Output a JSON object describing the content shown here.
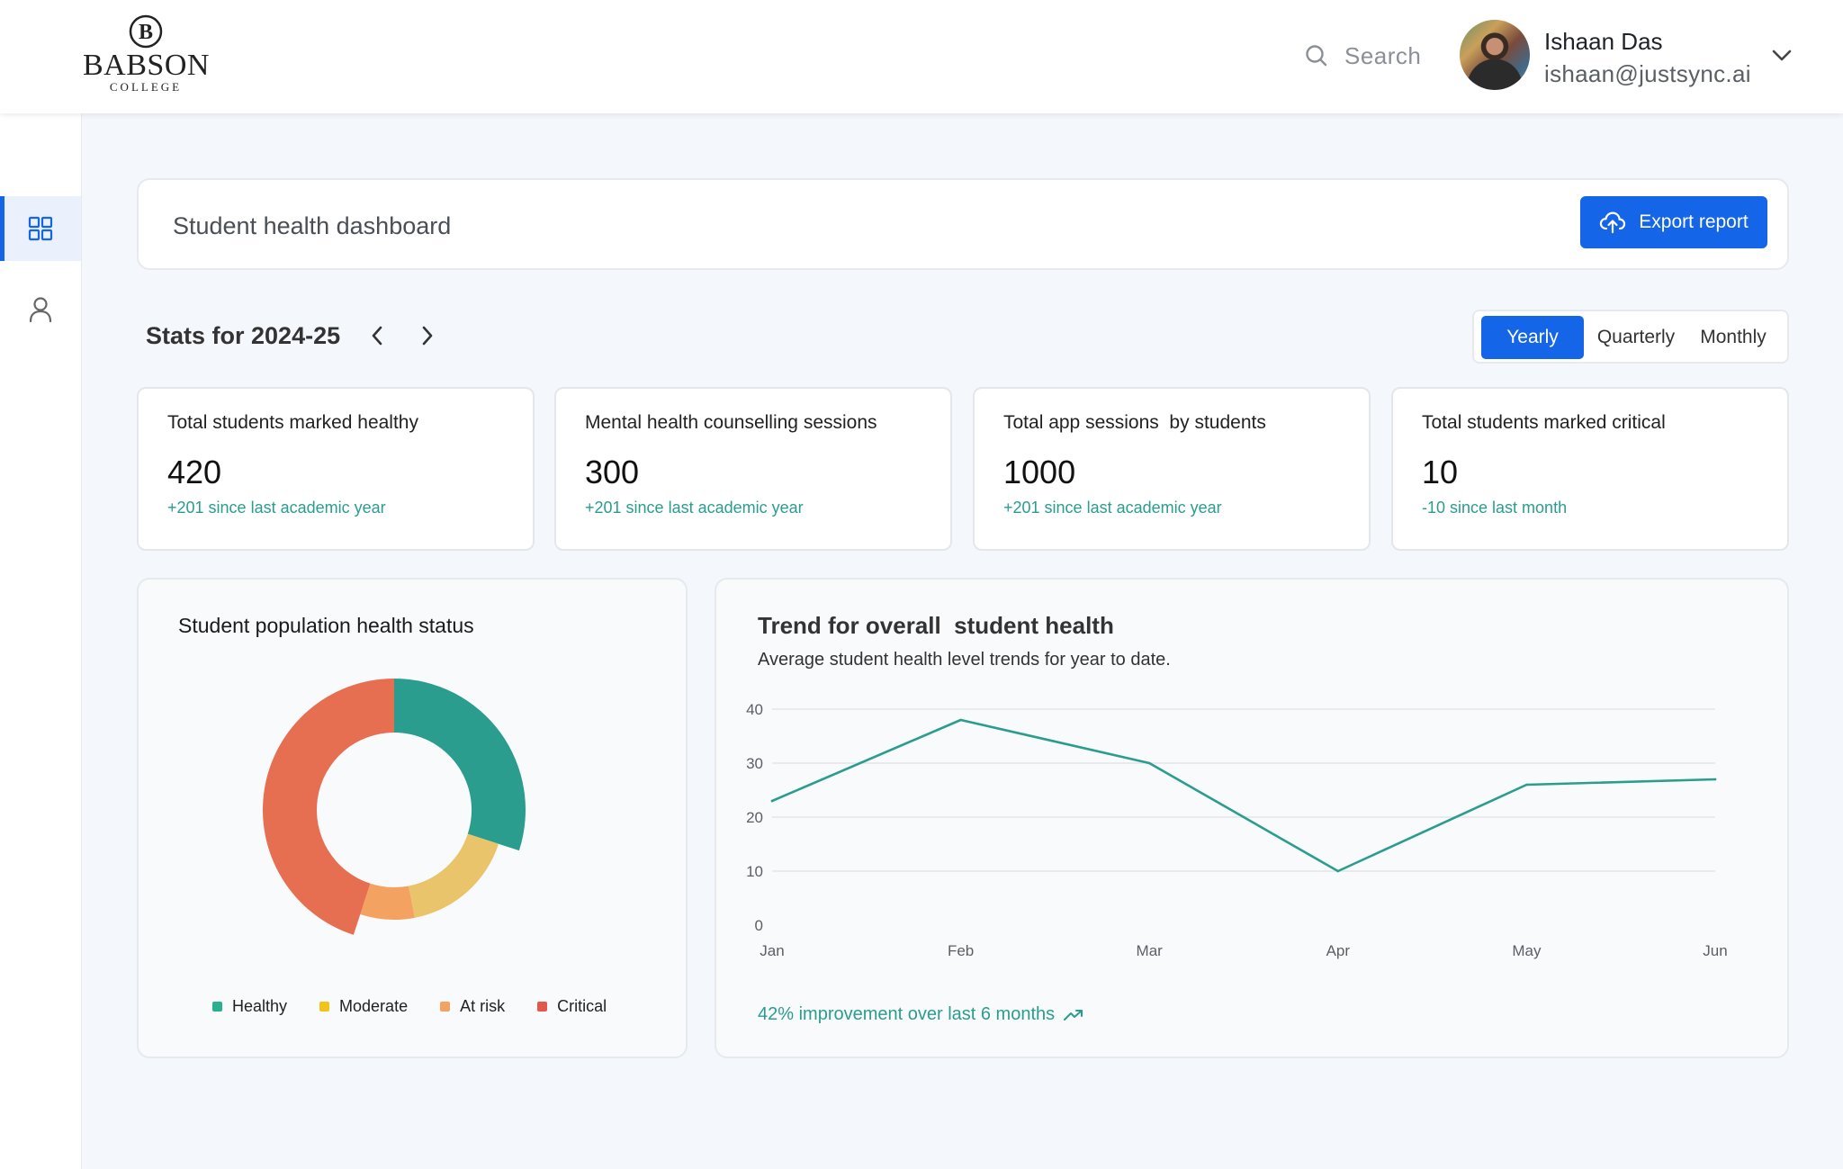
{
  "brand": {
    "logo_main": "BABSON",
    "logo_sub": "COLLEGE",
    "logo_monogram": "B"
  },
  "header": {
    "search_label": "Search",
    "user": {
      "name": "Ishaan Das",
      "email": "ishaan@justsync.ai"
    }
  },
  "sidebar": {
    "items": [
      {
        "icon": "grid-icon",
        "active": true
      },
      {
        "icon": "user-icon",
        "active": false
      }
    ]
  },
  "page": {
    "title": "Student health dashboard",
    "export_label": "Export report"
  },
  "stats": {
    "title": "Stats for 2024-25",
    "periods": [
      "Yearly",
      "Quarterly",
      "Monthly"
    ],
    "selected_period": "Yearly",
    "cards": [
      {
        "label": "Total students marked healthy",
        "value": "420",
        "delta": "+201 since last academic year"
      },
      {
        "label": "Mental health counselling sessions",
        "value": "300",
        "delta": "+201 since last academic year"
      },
      {
        "label": "Total app sessions  by students",
        "value": "1000",
        "delta": "+201 since last academic year"
      },
      {
        "label": "Total students marked critical",
        "value": "10",
        "delta": "-10 since last month"
      }
    ]
  },
  "donut": {
    "title": "Student population health status"
  },
  "trend": {
    "title": "Trend for overall  student health",
    "subtitle": "Average student health level trends for year to date.",
    "footer": "42% improvement over last 6 months"
  },
  "colors": {
    "primary": "#1565e8",
    "healthy": "#2a9d8f",
    "moderate": "#e9c46a",
    "at_risk": "#f4a261",
    "critical": "#e76f51"
  },
  "chart_data": [
    {
      "type": "pie",
      "title": "Student population health status",
      "categories": [
        "Healthy",
        "Moderate",
        "At risk",
        "Critical"
      ],
      "values": [
        30,
        17,
        8,
        45
      ],
      "colors": [
        "#2a9d8f",
        "#e9c46a",
        "#f4a261",
        "#e76f51"
      ],
      "donut": true,
      "legend": "bottom"
    },
    {
      "type": "line",
      "title": "Trend for overall  student health",
      "x": [
        "Jan",
        "Feb",
        "Mar",
        "Apr",
        "May",
        "Jun"
      ],
      "series": [
        {
          "values": [
            23,
            38,
            30,
            10,
            26,
            27
          ]
        }
      ],
      "yticks": [
        0,
        10,
        20,
        30,
        40
      ],
      "ylim": [
        0,
        40
      ],
      "grid": true,
      "color": "#2a9d8f"
    }
  ]
}
